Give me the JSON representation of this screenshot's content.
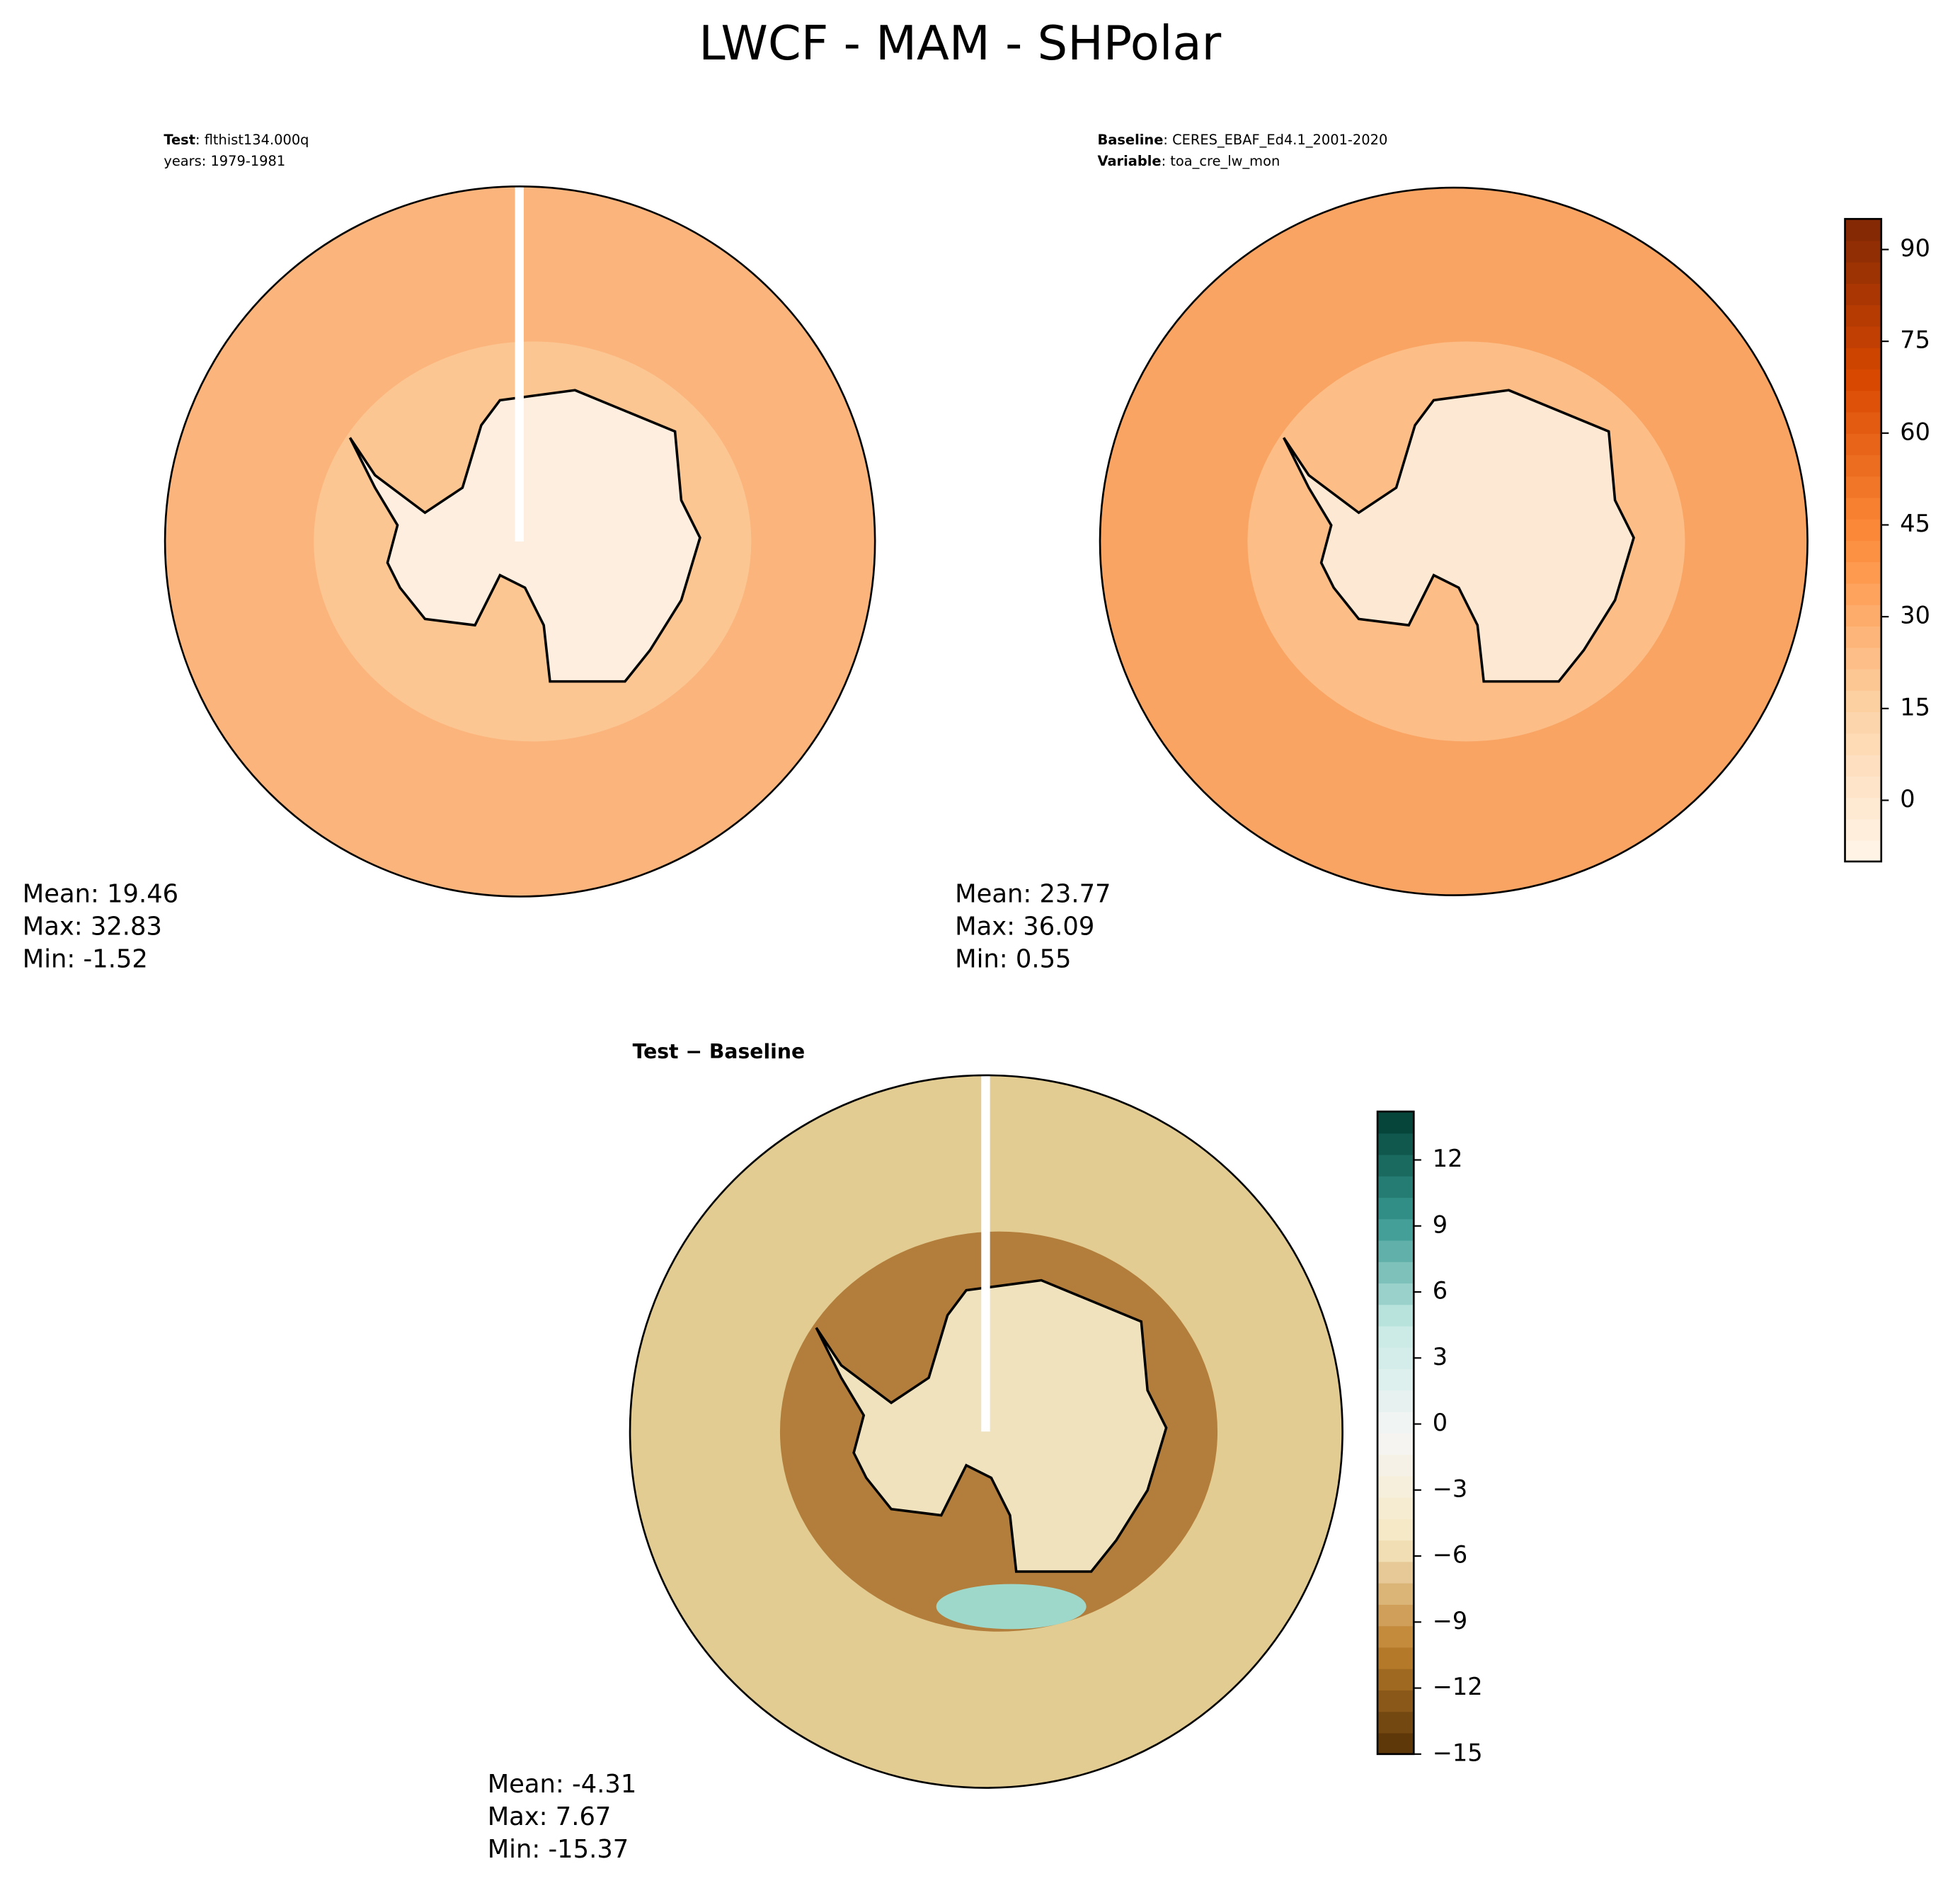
{
  "title": "LWCF - MAM - SHPolar",
  "panels": [
    {
      "header": [
        {
          "key": "Test",
          "value": ": flthist134.000q"
        },
        {
          "key": "",
          "value": "years: 1979-1981"
        }
      ],
      "stats": [
        "Mean: 19.46",
        "Max: 32.83",
        "Min: -1.52"
      ],
      "colors": {
        "ocean": "#fbb47b",
        "ring": "#fcca99",
        "land": "#fdeedf"
      }
    },
    {
      "header": [
        {
          "key": "Baseline",
          "value": ": CERES_EBAF_Ed4.1_2001-2020"
        },
        {
          "key": "Variable",
          "value": ": toa_cre_lw_mon"
        }
      ],
      "stats": [
        "Mean: 23.77",
        "Max: 36.09",
        "Min:  0.55"
      ],
      "colors": {
        "ocean": "#f9a463",
        "ring": "#fcc38f",
        "land": "#fde8d3"
      }
    },
    {
      "header": [
        {
          "key": "Test − Baseline",
          "value": ""
        }
      ],
      "stats": [
        "Mean: -4.31",
        "Max:  7.67",
        "Min: -15.37"
      ],
      "colors": {
        "ocean": "#e2cc92",
        "ring": "#a86a26",
        "land": "#efe2bd"
      }
    }
  ],
  "colorbars": [
    {
      "lim": [
        -10,
        95
      ],
      "ticks": [
        0,
        15,
        30,
        45,
        60,
        75,
        90
      ],
      "colors": [
        "#fff5eb",
        "#fdd0a2",
        "#fd8d3c",
        "#d94801",
        "#7f2704"
      ]
    },
    {
      "lim": [
        -15,
        14.2
      ],
      "ticks": [
        {
          "value": -15,
          "label": "−15"
        },
        {
          "value": -12,
          "label": "−12"
        },
        {
          "value": -9,
          "label": "−9"
        },
        {
          "value": -6,
          "label": "−6"
        },
        {
          "value": -3,
          "label": "−3"
        },
        0,
        3,
        6,
        9,
        12
      ],
      "colors": [
        "#543005",
        "#bf812d",
        "#f6e8c3",
        "#f5f5f5",
        "#c7eae5",
        "#35978f",
        "#003c30"
      ]
    }
  ]
}
